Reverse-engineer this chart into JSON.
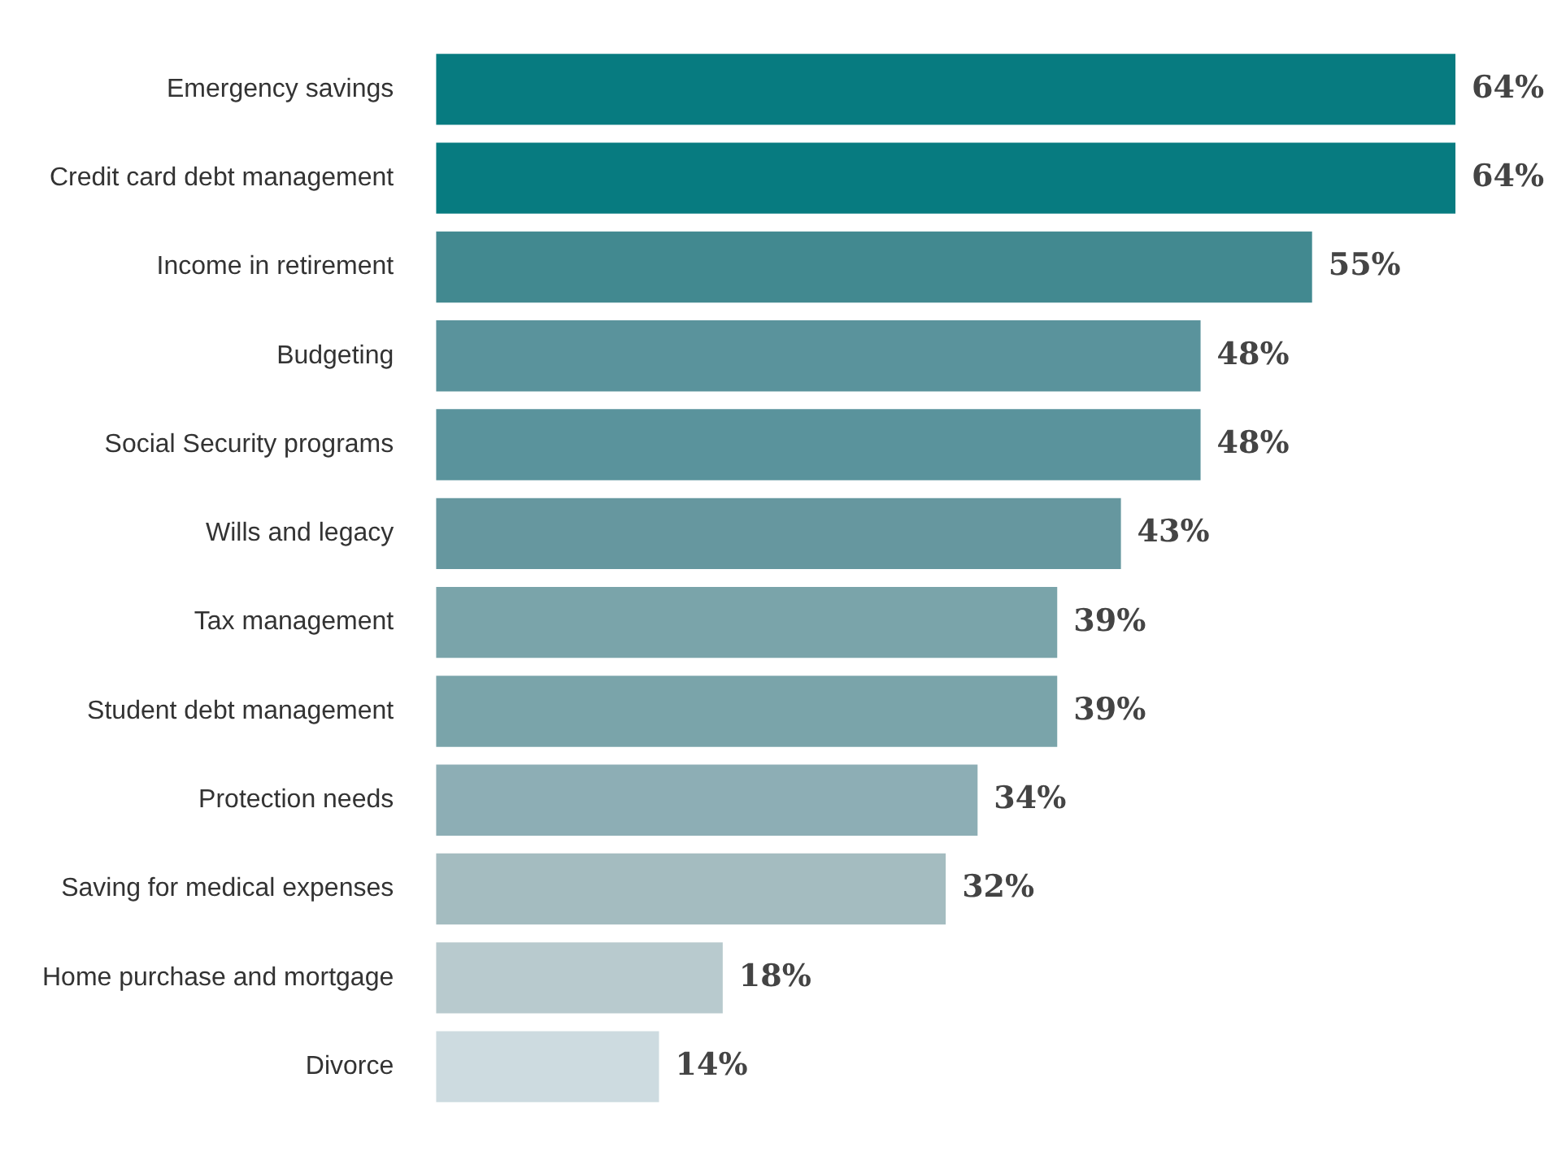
{
  "chart_data": {
    "type": "bar",
    "orientation": "horizontal",
    "categories": [
      "Emergency savings",
      "Credit card debt management",
      "Income in retirement",
      "Budgeting",
      "Social Security programs",
      "Wills and legacy",
      "Tax management",
      "Student debt management",
      "Protection needs",
      "Saving for medical expenses",
      "Home purchase and mortgage",
      "Divorce"
    ],
    "values": [
      64,
      64,
      55,
      48,
      48,
      43,
      39,
      39,
      34,
      32,
      18,
      14
    ],
    "value_labels": [
      "64%",
      "64%",
      "55%",
      "48%",
      "48%",
      "43%",
      "39%",
      "39%",
      "34%",
      "32%",
      "18%",
      "14%"
    ],
    "colors": [
      "#077b80",
      "#077b80",
      "#428990",
      "#5a939c",
      "#5a939c",
      "#66979f",
      "#7aa4aa",
      "#7aa4aa",
      "#8daeb5",
      "#a4bcc0",
      "#b8cace",
      "#cddbe0"
    ],
    "legend": false
  }
}
